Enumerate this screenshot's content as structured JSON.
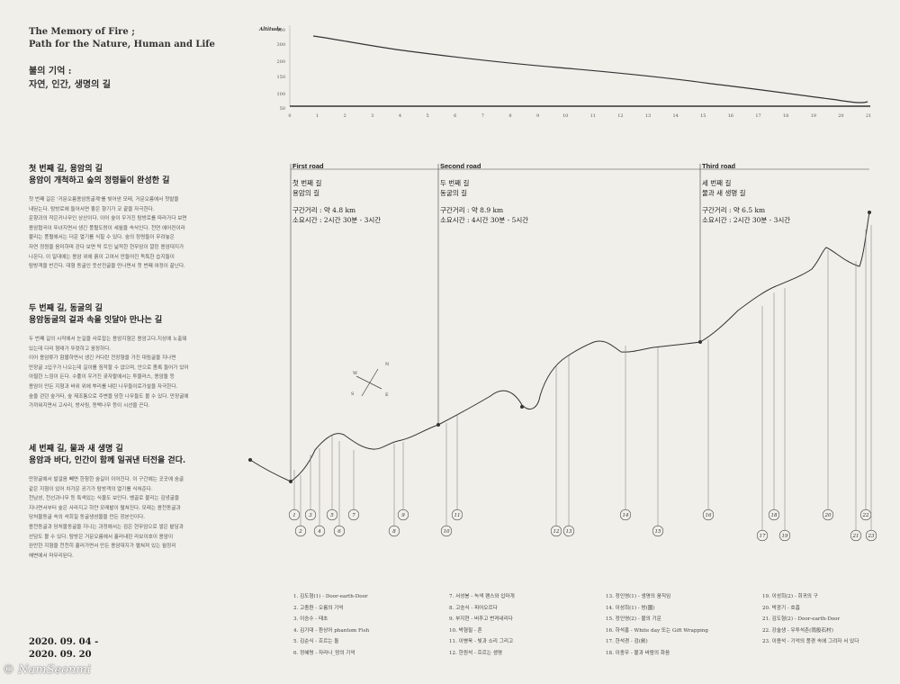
{
  "title": {
    "en_line1": "The Memory of Fire ;",
    "en_line2": "Path for the Nature, Human and Life",
    "ko_line1": "불의 기억 :",
    "ko_line2": "자연, 인간, 생명의 길"
  },
  "sections": [
    {
      "head1": "첫 번째 길, 용암의 길",
      "head2": "용암이 개척하고 숲의 정령들이 완성한 길",
      "body": [
        "첫 번째 길은 '거문오름용암동굴계'를 빚어낸 모태, 거문오름에서 첫발을",
        "내딛는다. 탐방로에 들어서면 좋은 향기가 코 끝을 자극한다.",
        "운향과의 작은키나무인 상산이다. 이어 숲이 우거진 탐방로를 따라가다 보면",
        "용암협곡이 뚜녀지면서 생긴 풍혈도랑이 세월을 속삭인다. 천연 에어컨이라",
        "불리는 풍혈에서는 더운 열기를 식힐 수 있다. 숲의 정령들이 무려놓은",
        "자연 정원을 음미하며 걷다 보면 탁 트인 넓적한 현무암이 깔린 용암대지가",
        "나온다. 이 일대에는 용암 위에 흙이 고여서 만들어진 독특한 습지들이",
        "탐방객을 반긴다. 대형 동굴인 웃산전굴을 만나면서 첫 번째 여정이 끝난다."
      ]
    },
    {
      "head1": "두 번째 길, 동굴의 길",
      "head2": "용암동굴의 겉과 속을 잇달아 만나는 길",
      "body": [
        "두 번째 길의 시작에서 눈길을 사로잡는 용암지형은 용암고다.지상에 노출돼",
        "있는데 다리 형태가 뚜렷하고 웅장하다.",
        "이어 용암류가 함몰하면서 생긴 커다란 전장형을 가진 대림굴을 지나면",
        "만장굴 3입구가 나오는데 길이를 짐작할 수 없으며, 안으로 좀록 들어가 있어",
        "아찔한 느낌이 든다. 수풀이 우거진 곶자왈에서는 투물러스, 용암돌 등",
        "용암이 만든 지형과 바위 위에 뿌리를 내린 나무들이로가설을 자극한다.",
        "숲을 걷던 숲거타, 숲 제조통으로 주변을 당한 나무들도 볼 수 있다. 만장굴에",
        "가까워지면서 고사리, 방사림, 동백나무 등이 시선을 끈다."
      ]
    },
    {
      "head1": "세 번째 길, 물과 새 생명 길",
      "head2": "용암과 바다, 인간이 함께 일궈낸 터전을 걷다.",
      "body": [
        "만장굴에서 발걸음 빼면 한참한 숲길이 이어진다. 이 구간에는 곳곳에 숨골",
        "같은 지형이 있어 차가운 공기가 탐방객의 열기를 식혀준다.",
        "천남성, 천선과나무 등 특색있는 식물도 보인다. 벵골로 불리는 김녕굴을",
        "지나면서부터 숲은 사라지고 하얀 모래밭이 펼쳐진다. 모래는 용천동굴과",
        "당처물동굴 속의 석회질 동굴생성물을 만든 장본인이다.",
        "용천동굴과 당처물동굴을 지나는 과정에서는 검은 현무암으로 쌓은 밭담과",
        "산담도 볼 수 있다. 탐방은 거문오름에서 흘러내린 라보이호이 용암이",
        "완만한 지형을 천천히 흘러가면서 만든 용암대지가 펼쳐져 있는 월정리",
        "해변에서 마무리된다."
      ]
    }
  ],
  "dates": {
    "start": "2020. 09. 04 -",
    "end": "2020. 09. 20"
  },
  "watermark": "© NamSeonmi",
  "altitude_chart": {
    "ylabel": "Altitude",
    "yticks": [
      "400",
      "300",
      "200",
      "150",
      "100",
      "50"
    ],
    "xticks": [
      "0",
      "1",
      "2",
      "3",
      "4",
      "5",
      "6",
      "7",
      "8",
      "9",
      "10",
      "11",
      "12",
      "13",
      "14",
      "15",
      "16",
      "17",
      "18",
      "19",
      "20",
      "21"
    ]
  },
  "roads": [
    {
      "label": "First road",
      "name1": "첫 번째 길",
      "name2": "용암의 길",
      "distance": "구간거리 : 약 4.8 km",
      "time": "소요시간 : 2시간 30분 - 3시간"
    },
    {
      "label": "Second road",
      "name1": "두 번째 길",
      "name2": "동굴의 길",
      "distance": "구간거리 : 약 8.9 km",
      "time": "소요시간 : 4시간 30분 - 5시간"
    },
    {
      "label": "Third road",
      "name1": "세 번째 길",
      "name2": "물과 새 생명 길",
      "distance": "구간거리 : 약 6.5 km",
      "time": "소요시간 : 2시간 30분 - 3시간"
    }
  ],
  "compass": {
    "n": "N",
    "s": "S",
    "e": "E",
    "w": "W"
  },
  "markers": [
    "1",
    "2",
    "3",
    "4",
    "5",
    "6",
    "7",
    "8",
    "9",
    "10",
    "11",
    "12",
    "13",
    "14",
    "15",
    "16",
    "17",
    "18",
    "19",
    "20",
    "21",
    "22",
    "23"
  ],
  "legend": [
    [
      "1. 김도형(1) - Door-earth-Door",
      "2. 고충환 - 오름의 기억",
      "3. 이승수 - 태초",
      "4. 김기대 - 환상어 phantom Fish",
      "5. 김순식 - 흐르는 돌",
      "6. 정혜령 - 자라나_땅의 기억"
    ],
    [
      "7. 서성봉 - 녹색 팬스와 입마개",
      "8. 고승식 - 피어오르다",
      "9. 부지현 - 버추고 번져내리다",
      "10. 박형필 - 흔",
      "11. 이병욱 - 빛과 소리 그리고",
      "12. 한원석 - 흐르는 생명"
    ],
    [
      "13. 정인영(1) - 생명의 움직임",
      "14. 이성희(1) - 방(園)",
      "15. 정인영(2) - 불의 기운",
      "16. 하석홍 - White day 또는 Gift Wrapping",
      "17. 한석경 - 검(劍)",
      "18. 이종우 - 불과 바람의 화음"
    ],
    [
      "19. 이성희(2) - 회귀의 구",
      "20. 박광기 - 호흡",
      "21. 김도형(2) - Door-earth-Door",
      "22. 강술생 - 우투석촌(雨投石村)",
      "23. 이용석 - 기억의 풍경 속에 그려자 서 있다"
    ]
  ]
}
